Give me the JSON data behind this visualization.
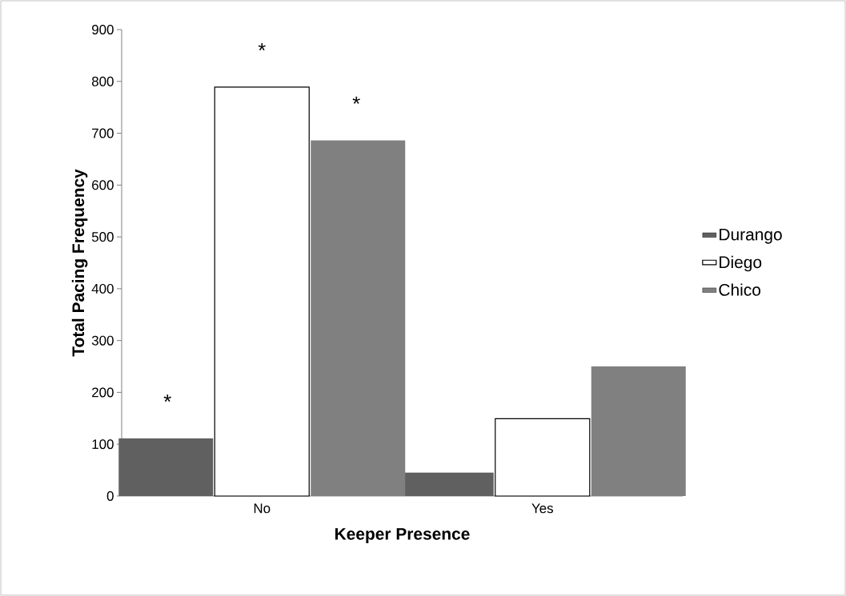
{
  "chart_data": {
    "type": "bar",
    "xlabel": "Keeper Presence",
    "ylabel": "Total Pacing Frequency",
    "categories": [
      "No",
      "Yes"
    ],
    "series": [
      {
        "name": "Durango",
        "color": "#606060",
        "values": [
          111,
          45
        ]
      },
      {
        "name": "Diego",
        "color": "#ffffff",
        "values": [
          789,
          149
        ]
      },
      {
        "name": "Chico",
        "color": "#808080",
        "values": [
          686,
          250
        ]
      }
    ],
    "ylim": [
      0,
      900
    ],
    "yticks": [
      0,
      100,
      200,
      300,
      400,
      500,
      600,
      700,
      800,
      900
    ],
    "annotations": [
      "*",
      "*",
      "*"
    ],
    "grid": false,
    "legend": "right"
  }
}
